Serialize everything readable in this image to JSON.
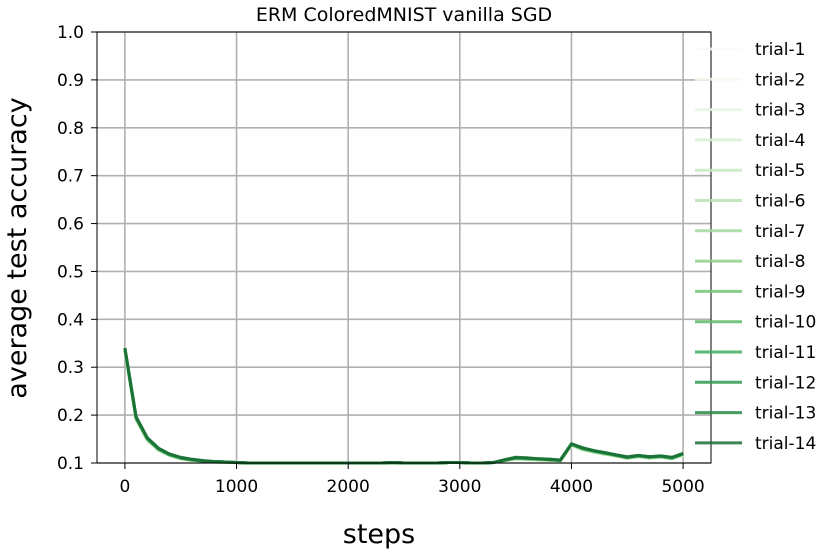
{
  "chart_data": {
    "type": "line",
    "title": "ERM ColoredMNIST vanilla SGD",
    "xlabel": "steps",
    "ylabel": "average test accuracy",
    "xlim": [
      -250,
      5250
    ],
    "ylim": [
      0.1,
      1.0
    ],
    "xticks": [
      0,
      1000,
      2000,
      3000,
      4000,
      5000
    ],
    "yticks": [
      0.1,
      0.2,
      0.3,
      0.4,
      0.5,
      0.6,
      0.7,
      0.8,
      0.9,
      1.0
    ],
    "grid": true,
    "legend_position": "right",
    "x": [
      0,
      100,
      200,
      300,
      400,
      500,
      600,
      700,
      800,
      900,
      1000,
      1100,
      1200,
      1300,
      1400,
      1500,
      1600,
      1700,
      1800,
      1900,
      2000,
      2100,
      2200,
      2300,
      2400,
      2500,
      2600,
      2700,
      2800,
      2900,
      3000,
      3100,
      3200,
      3300,
      3400,
      3500,
      3600,
      3700,
      3800,
      3900,
      4000,
      4100,
      4200,
      4300,
      4400,
      4500,
      4600,
      4700,
      4800,
      4900,
      5000
    ],
    "series": [
      {
        "name": "trial-1",
        "color": "#f7fcf5",
        "values": [
          0.333,
          0.188,
          0.146,
          0.125,
          0.114,
          0.108,
          0.105,
          0.103,
          0.102,
          0.101,
          0.101,
          0.1,
          0.1,
          0.1,
          0.1,
          0.1,
          0.1,
          0.1,
          0.1,
          0.1,
          0.1,
          0.1,
          0.1,
          0.1,
          0.101,
          0.1,
          0.1,
          0.1,
          0.1,
          0.101,
          0.101,
          0.1,
          0.1,
          0.101,
          0.104,
          0.108,
          0.107,
          0.106,
          0.105,
          0.104,
          0.136,
          0.127,
          0.122,
          0.118,
          0.114,
          0.11,
          0.113,
          0.11,
          0.112,
          0.109,
          0.116
        ]
      },
      {
        "name": "trial-2",
        "color": "#f4fbf1",
        "values": [
          0.334,
          0.189,
          0.147,
          0.126,
          0.115,
          0.108,
          0.105,
          0.103,
          0.102,
          0.101,
          0.101,
          0.1,
          0.1,
          0.1,
          0.1,
          0.1,
          0.1,
          0.1,
          0.1,
          0.1,
          0.1,
          0.1,
          0.1,
          0.1,
          0.101,
          0.1,
          0.1,
          0.1,
          0.1,
          0.101,
          0.101,
          0.1,
          0.1,
          0.101,
          0.104,
          0.108,
          0.107,
          0.106,
          0.105,
          0.104,
          0.136,
          0.127,
          0.122,
          0.118,
          0.114,
          0.11,
          0.113,
          0.11,
          0.112,
          0.109,
          0.116
        ]
      },
      {
        "name": "trial-3",
        "color": "#e5f5e0",
        "values": [
          0.335,
          0.19,
          0.147,
          0.126,
          0.115,
          0.108,
          0.105,
          0.103,
          0.102,
          0.101,
          0.101,
          0.1,
          0.1,
          0.1,
          0.1,
          0.1,
          0.1,
          0.1,
          0.1,
          0.1,
          0.1,
          0.1,
          0.1,
          0.1,
          0.101,
          0.1,
          0.1,
          0.1,
          0.1,
          0.101,
          0.101,
          0.1,
          0.1,
          0.101,
          0.104,
          0.108,
          0.107,
          0.106,
          0.105,
          0.104,
          0.137,
          0.128,
          0.122,
          0.118,
          0.114,
          0.11,
          0.113,
          0.11,
          0.112,
          0.109,
          0.117
        ]
      },
      {
        "name": "trial-4",
        "color": "#d9f0d3",
        "values": [
          0.335,
          0.19,
          0.148,
          0.127,
          0.115,
          0.109,
          0.105,
          0.103,
          0.102,
          0.101,
          0.101,
          0.1,
          0.1,
          0.1,
          0.1,
          0.1,
          0.1,
          0.1,
          0.1,
          0.1,
          0.1,
          0.1,
          0.1,
          0.1,
          0.101,
          0.1,
          0.1,
          0.1,
          0.1,
          0.101,
          0.101,
          0.1,
          0.1,
          0.101,
          0.105,
          0.109,
          0.108,
          0.107,
          0.105,
          0.104,
          0.137,
          0.128,
          0.123,
          0.118,
          0.114,
          0.11,
          0.113,
          0.11,
          0.112,
          0.109,
          0.117
        ]
      },
      {
        "name": "trial-5",
        "color": "#c7e9c0",
        "values": [
          0.336,
          0.191,
          0.148,
          0.127,
          0.116,
          0.109,
          0.105,
          0.103,
          0.102,
          0.101,
          0.101,
          0.1,
          0.1,
          0.1,
          0.1,
          0.1,
          0.1,
          0.1,
          0.1,
          0.1,
          0.1,
          0.1,
          0.1,
          0.1,
          0.101,
          0.1,
          0.1,
          0.1,
          0.1,
          0.101,
          0.101,
          0.1,
          0.1,
          0.101,
          0.105,
          0.109,
          0.108,
          0.107,
          0.106,
          0.104,
          0.137,
          0.128,
          0.123,
          0.119,
          0.115,
          0.11,
          0.113,
          0.111,
          0.112,
          0.109,
          0.117
        ]
      },
      {
        "name": "trial-6",
        "color": "#b8e3b0",
        "values": [
          0.336,
          0.192,
          0.149,
          0.128,
          0.116,
          0.109,
          0.106,
          0.103,
          0.102,
          0.101,
          0.101,
          0.1,
          0.1,
          0.1,
          0.1,
          0.1,
          0.1,
          0.1,
          0.1,
          0.1,
          0.1,
          0.1,
          0.1,
          0.1,
          0.101,
          0.1,
          0.1,
          0.1,
          0.1,
          0.101,
          0.101,
          0.1,
          0.1,
          0.101,
          0.105,
          0.109,
          0.108,
          0.107,
          0.106,
          0.104,
          0.138,
          0.129,
          0.123,
          0.119,
          0.115,
          0.11,
          0.114,
          0.111,
          0.113,
          0.109,
          0.117
        ]
      },
      {
        "name": "trial-7",
        "color": "#a1d99b",
        "values": [
          0.337,
          0.192,
          0.149,
          0.128,
          0.116,
          0.109,
          0.106,
          0.104,
          0.102,
          0.101,
          0.101,
          0.1,
          0.1,
          0.1,
          0.1,
          0.1,
          0.1,
          0.1,
          0.1,
          0.1,
          0.1,
          0.1,
          0.1,
          0.1,
          0.101,
          0.1,
          0.1,
          0.1,
          0.1,
          0.101,
          0.101,
          0.1,
          0.1,
          0.101,
          0.105,
          0.109,
          0.108,
          0.107,
          0.106,
          0.105,
          0.138,
          0.129,
          0.124,
          0.119,
          0.115,
          0.111,
          0.114,
          0.111,
          0.113,
          0.11,
          0.118
        ]
      },
      {
        "name": "trial-8",
        "color": "#8fd18a",
        "values": [
          0.337,
          0.193,
          0.15,
          0.128,
          0.117,
          0.11,
          0.106,
          0.104,
          0.102,
          0.101,
          0.101,
          0.1,
          0.1,
          0.1,
          0.1,
          0.1,
          0.1,
          0.1,
          0.1,
          0.1,
          0.1,
          0.1,
          0.1,
          0.1,
          0.101,
          0.1,
          0.1,
          0.1,
          0.1,
          0.101,
          0.101,
          0.1,
          0.1,
          0.101,
          0.105,
          0.11,
          0.109,
          0.108,
          0.106,
          0.105,
          0.138,
          0.129,
          0.124,
          0.12,
          0.115,
          0.111,
          0.114,
          0.111,
          0.113,
          0.11,
          0.118
        ]
      },
      {
        "name": "trial-9",
        "color": "#74c476",
        "values": [
          0.338,
          0.194,
          0.15,
          0.129,
          0.117,
          0.11,
          0.106,
          0.104,
          0.102,
          0.101,
          0.101,
          0.1,
          0.1,
          0.1,
          0.1,
          0.1,
          0.1,
          0.1,
          0.1,
          0.1,
          0.1,
          0.1,
          0.1,
          0.1,
          0.101,
          0.1,
          0.1,
          0.1,
          0.1,
          0.101,
          0.101,
          0.1,
          0.1,
          0.101,
          0.106,
          0.11,
          0.109,
          0.108,
          0.107,
          0.105,
          0.139,
          0.13,
          0.124,
          0.12,
          0.116,
          0.111,
          0.114,
          0.112,
          0.113,
          0.11,
          0.118
        ]
      },
      {
        "name": "trial-10",
        "color": "#5db96b",
        "values": [
          0.338,
          0.194,
          0.151,
          0.129,
          0.117,
          0.11,
          0.107,
          0.104,
          0.103,
          0.102,
          0.101,
          0.1,
          0.1,
          0.1,
          0.1,
          0.1,
          0.1,
          0.1,
          0.1,
          0.1,
          0.1,
          0.1,
          0.1,
          0.1,
          0.101,
          0.1,
          0.1,
          0.1,
          0.1,
          0.101,
          0.101,
          0.1,
          0.1,
          0.101,
          0.106,
          0.11,
          0.109,
          0.108,
          0.107,
          0.105,
          0.139,
          0.13,
          0.125,
          0.12,
          0.116,
          0.111,
          0.115,
          0.112,
          0.114,
          0.11,
          0.119
        ]
      },
      {
        "name": "trial-11",
        "color": "#41ab5d",
        "values": [
          0.339,
          0.195,
          0.151,
          0.13,
          0.118,
          0.111,
          0.107,
          0.104,
          0.103,
          0.102,
          0.101,
          0.1,
          0.1,
          0.1,
          0.1,
          0.1,
          0.1,
          0.1,
          0.1,
          0.1,
          0.1,
          0.1,
          0.1,
          0.1,
          0.101,
          0.1,
          0.1,
          0.1,
          0.1,
          0.101,
          0.101,
          0.1,
          0.1,
          0.101,
          0.106,
          0.111,
          0.11,
          0.108,
          0.107,
          0.106,
          0.139,
          0.13,
          0.125,
          0.121,
          0.116,
          0.112,
          0.115,
          0.112,
          0.114,
          0.111,
          0.119
        ]
      },
      {
        "name": "trial-12",
        "color": "#2f9a4f",
        "values": [
          0.339,
          0.195,
          0.152,
          0.13,
          0.118,
          0.111,
          0.107,
          0.104,
          0.103,
          0.102,
          0.101,
          0.1,
          0.1,
          0.1,
          0.1,
          0.1,
          0.1,
          0.1,
          0.1,
          0.1,
          0.1,
          0.1,
          0.1,
          0.1,
          0.101,
          0.1,
          0.1,
          0.1,
          0.1,
          0.101,
          0.101,
          0.1,
          0.1,
          0.101,
          0.106,
          0.111,
          0.11,
          0.109,
          0.107,
          0.106,
          0.14,
          0.131,
          0.125,
          0.121,
          0.117,
          0.112,
          0.115,
          0.113,
          0.114,
          0.111,
          0.119
        ]
      },
      {
        "name": "trial-13",
        "color": "#238b45",
        "values": [
          0.34,
          0.196,
          0.152,
          0.131,
          0.118,
          0.111,
          0.107,
          0.105,
          0.103,
          0.102,
          0.101,
          0.1,
          0.1,
          0.1,
          0.1,
          0.1,
          0.1,
          0.1,
          0.1,
          0.1,
          0.1,
          0.1,
          0.1,
          0.1,
          0.101,
          0.1,
          0.1,
          0.1,
          0.1,
          0.101,
          0.101,
          0.1,
          0.1,
          0.101,
          0.106,
          0.111,
          0.11,
          0.109,
          0.108,
          0.106,
          0.14,
          0.131,
          0.126,
          0.121,
          0.117,
          0.112,
          0.116,
          0.113,
          0.115,
          0.111,
          0.12
        ]
      },
      {
        "name": "trial-14",
        "color": "#1b6e35",
        "values": [
          0.34,
          0.197,
          0.153,
          0.131,
          0.119,
          0.112,
          0.108,
          0.105,
          0.103,
          0.102,
          0.101,
          0.1,
          0.1,
          0.1,
          0.1,
          0.1,
          0.1,
          0.1,
          0.1,
          0.1,
          0.1,
          0.1,
          0.1,
          0.1,
          0.101,
          0.1,
          0.1,
          0.1,
          0.1,
          0.101,
          0.101,
          0.1,
          0.1,
          0.101,
          0.107,
          0.112,
          0.111,
          0.109,
          0.108,
          0.106,
          0.14,
          0.132,
          0.126,
          0.122,
          0.117,
          0.113,
          0.116,
          0.113,
          0.115,
          0.112,
          0.12
        ]
      }
    ]
  }
}
